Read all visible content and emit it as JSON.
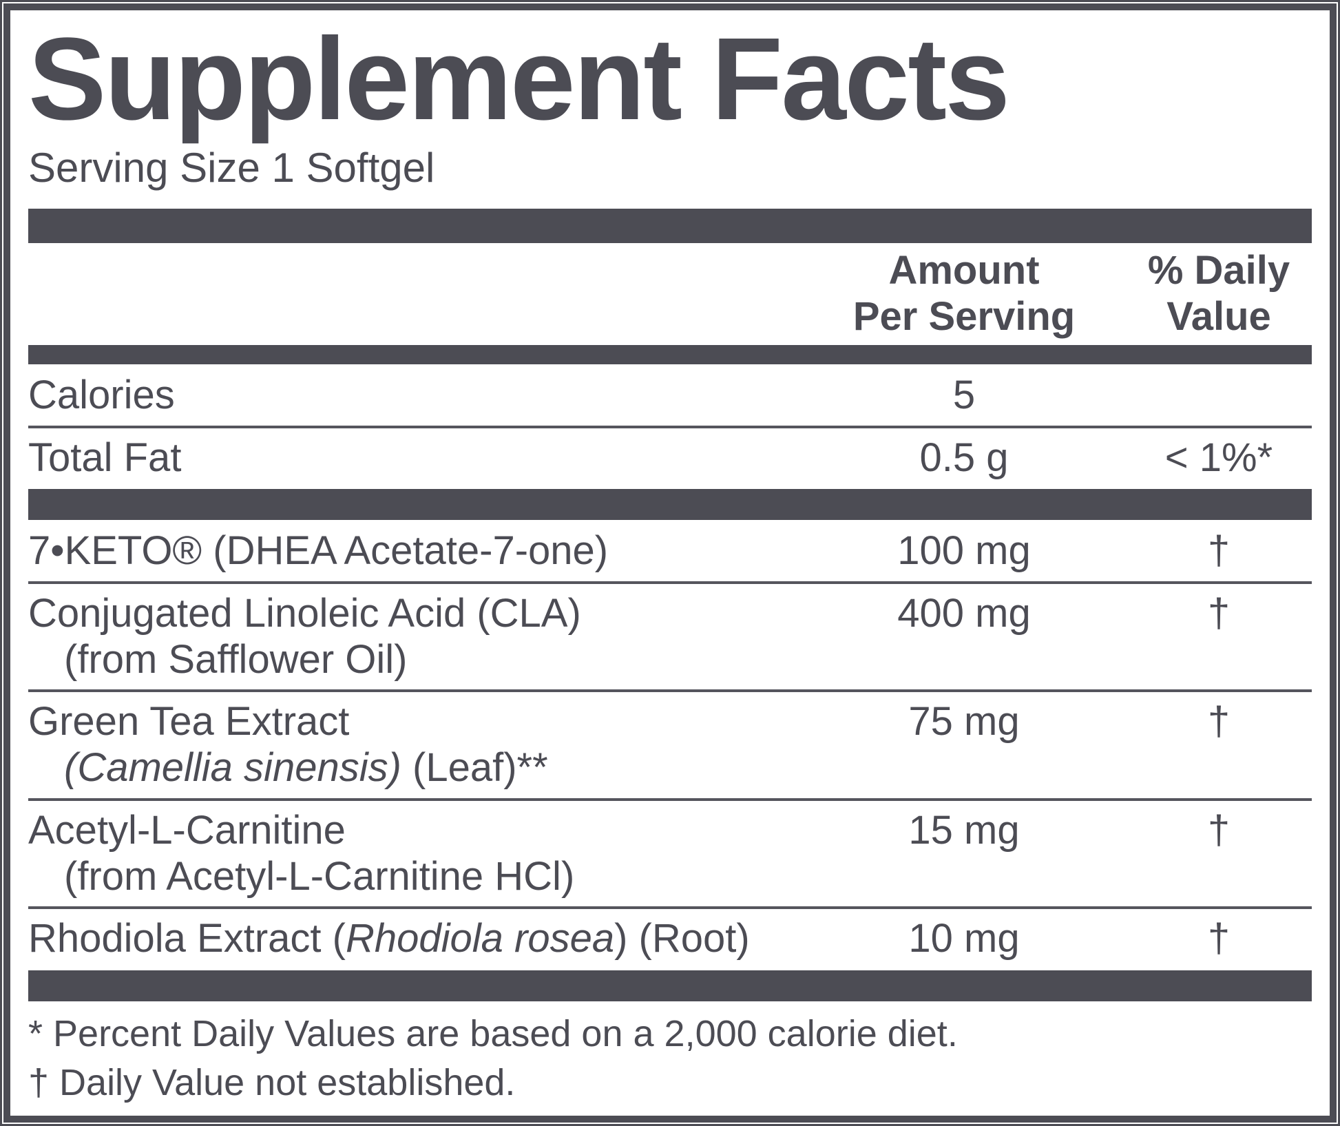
{
  "colors": {
    "ink": "#4c4c54",
    "line": "#55555d",
    "background": "#ffffff"
  },
  "header": {
    "title": "Supplement Facts",
    "serving_size": "Serving Size 1 Softgel"
  },
  "columns": {
    "amount_line1": "Amount",
    "amount_line2": "Per Serving",
    "daily_value_line1": "% Daily",
    "daily_value_line2": "Value"
  },
  "macros": [
    {
      "name": "Calories",
      "amount": "5",
      "daily_value": ""
    },
    {
      "name": "Total Fat",
      "amount": "0.5 g",
      "daily_value": "< 1%*"
    }
  ],
  "ingredients": [
    {
      "name": "7•KETO® (DHEA Acetate-7-one)",
      "amount": "100 mg",
      "daily_value": "†"
    },
    {
      "name": "Conjugated Linoleic Acid (CLA)",
      "detail": "(from Safflower Oil)",
      "amount": "400 mg",
      "daily_value": "†"
    },
    {
      "name": "Green Tea Extract",
      "detail_italic": "(Camellia sinensis)",
      "detail_suffix": " (Leaf)**",
      "amount": "75 mg",
      "daily_value": "†"
    },
    {
      "name": "Acetyl-L-Carnitine",
      "detail": "(from Acetyl-L-Carnitine HCl)",
      "amount": "15 mg",
      "daily_value": "†"
    },
    {
      "name_prefix": "Rhodiola Extract (",
      "name_italic": "Rhodiola rosea",
      "name_suffix": ") (Root)",
      "amount": "10 mg",
      "daily_value": "†"
    }
  ],
  "footnotes": [
    "* Percent Daily Values are based on a 2,000 calorie diet.",
    "† Daily Value not established."
  ]
}
